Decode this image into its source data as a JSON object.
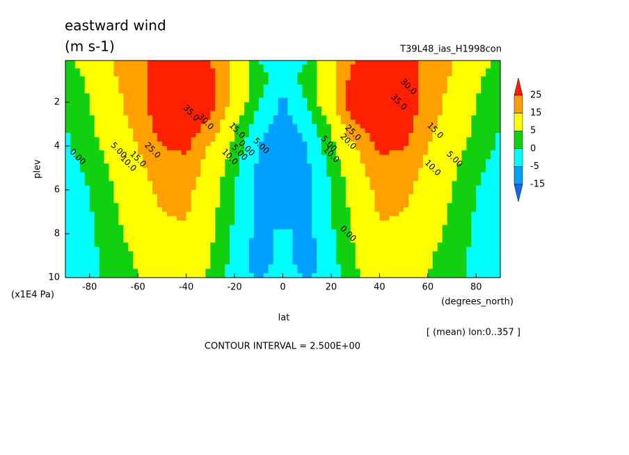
{
  "chart_data": {
    "type": "contour",
    "title": "eastward wind",
    "units": "(m s-1)",
    "run_label": "T39L48_ias_H1998con",
    "x_label": "lat",
    "x_unit": "(degrees_north)",
    "y_label": "plev",
    "y_unit": "(x1E4 Pa)",
    "footnote": "[ (mean) lon:0..357 ]",
    "contour_interval_text": "CONTOUR INTERVAL = 2.500E+00",
    "x": [
      -90,
      -80,
      -70,
      -60,
      -50,
      -40,
      -30,
      -20,
      -10,
      0,
      10,
      20,
      30,
      40,
      50,
      60,
      70,
      80,
      90
    ],
    "y": [
      0.1,
      1,
      2,
      3,
      4,
      5,
      6,
      7,
      8,
      9,
      10
    ],
    "z": [
      [
        3,
        8,
        15,
        22,
        28,
        30,
        25,
        12,
        0,
        -3,
        0,
        12,
        25,
        30,
        28,
        22,
        15,
        8,
        3
      ],
      [
        2,
        6,
        14,
        22,
        30,
        33,
        28,
        12,
        2,
        -3,
        2,
        12,
        30,
        33,
        30,
        22,
        14,
        6,
        2
      ],
      [
        1,
        5,
        12,
        20,
        33,
        36,
        30,
        10,
        0,
        -6,
        0,
        12,
        37,
        36,
        33,
        20,
        12,
        5,
        1
      ],
      [
        0,
        4,
        10,
        18,
        30,
        32,
        22,
        6,
        -3,
        -7,
        -3,
        6,
        24,
        32,
        30,
        18,
        10,
        4,
        0
      ],
      [
        -1,
        3,
        8,
        15,
        25,
        27,
        14,
        3,
        -5,
        -8,
        -5,
        3,
        15,
        27,
        26,
        15,
        8,
        3,
        -1
      ],
      [
        -2,
        1,
        6,
        13,
        20,
        22,
        10,
        1,
        -6,
        -8,
        -6,
        1,
        10,
        22,
        20,
        13,
        6,
        1,
        -2
      ],
      [
        -2,
        0,
        5,
        11,
        17,
        18,
        8,
        0,
        -6,
        -8,
        -6,
        0,
        8,
        18,
        17,
        11,
        5,
        0,
        -2
      ],
      [
        -2,
        -0.5,
        4,
        10,
        15,
        16,
        7,
        0,
        -6,
        -7,
        -6,
        0,
        7,
        16,
        15,
        10,
        4,
        -0.5,
        -2
      ],
      [
        -2,
        -1,
        3,
        8,
        13,
        14,
        6,
        -1,
        -6,
        -4,
        -6,
        -1,
        6,
        14,
        13,
        8,
        3,
        -1,
        -2
      ],
      [
        -2,
        -1,
        2,
        6,
        11,
        12,
        5,
        -2,
        -8,
        -3,
        -8,
        -2,
        5,
        12,
        11,
        6,
        2,
        -1,
        -2
      ],
      [
        -2,
        -1,
        2,
        5,
        9,
        10,
        4,
        -2,
        -6,
        -2,
        -6,
        -2,
        4,
        10,
        9,
        5,
        2,
        -1,
        -2
      ]
    ],
    "xlim": [
      -90,
      90
    ],
    "ylim": [
      10,
      0.1
    ],
    "xticks": [
      -80,
      -60,
      -40,
      -20,
      0,
      20,
      40,
      60,
      80
    ],
    "yticks": [
      2,
      4,
      6,
      8,
      10
    ],
    "levels": [
      -15,
      -5,
      0,
      5,
      15,
      25
    ],
    "colors": [
      "#1464ff",
      "#00a0ff",
      "#00ffff",
      "#10d010",
      "#ffff00",
      "#ffa000",
      "#ff2000"
    ],
    "contour_labels": [
      {
        "text": "35.0",
        "lat": -38,
        "plev": 2.5
      },
      {
        "text": "30.0",
        "lat": -32,
        "plev": 2.9
      },
      {
        "text": "15.0",
        "lat": -19,
        "plev": 3.3
      },
      {
        "text": "0.00",
        "lat": -85,
        "plev": 4.5
      },
      {
        "text": "5.00",
        "lat": -68,
        "plev": 4.2
      },
      {
        "text": "10.0",
        "lat": -64,
        "plev": 4.8
      },
      {
        "text": "15.0",
        "lat": -60,
        "plev": 4.6
      },
      {
        "text": "25.0",
        "lat": -54,
        "plev": 4.2
      },
      {
        "text": "10.0",
        "lat": -22,
        "plev": 4.5
      },
      {
        "text": "5.00",
        "lat": -18,
        "plev": 4.3
      },
      {
        "text": "0.00",
        "lat": -15,
        "plev": 4.1
      },
      {
        "text": "5.00",
        "lat": -9,
        "plev": 4.0
      },
      {
        "text": "30.0",
        "lat": 52,
        "plev": 1.3
      },
      {
        "text": "35.0",
        "lat": 48,
        "plev": 2.0
      },
      {
        "text": "25.0",
        "lat": 29,
        "plev": 3.4
      },
      {
        "text": "20.0",
        "lat": 27,
        "plev": 3.8
      },
      {
        "text": "15.0",
        "lat": 63,
        "plev": 3.3
      },
      {
        "text": "10.0",
        "lat": 62,
        "plev": 5.0
      },
      {
        "text": "5.00",
        "lat": 71,
        "plev": 4.6
      },
      {
        "text": "0.00",
        "lat": 27,
        "plev": 8.0
      },
      {
        "text": "10.0",
        "lat": 20,
        "plev": 4.4
      },
      {
        "text": "5.00",
        "lat": 19,
        "plev": 3.9
      }
    ]
  }
}
